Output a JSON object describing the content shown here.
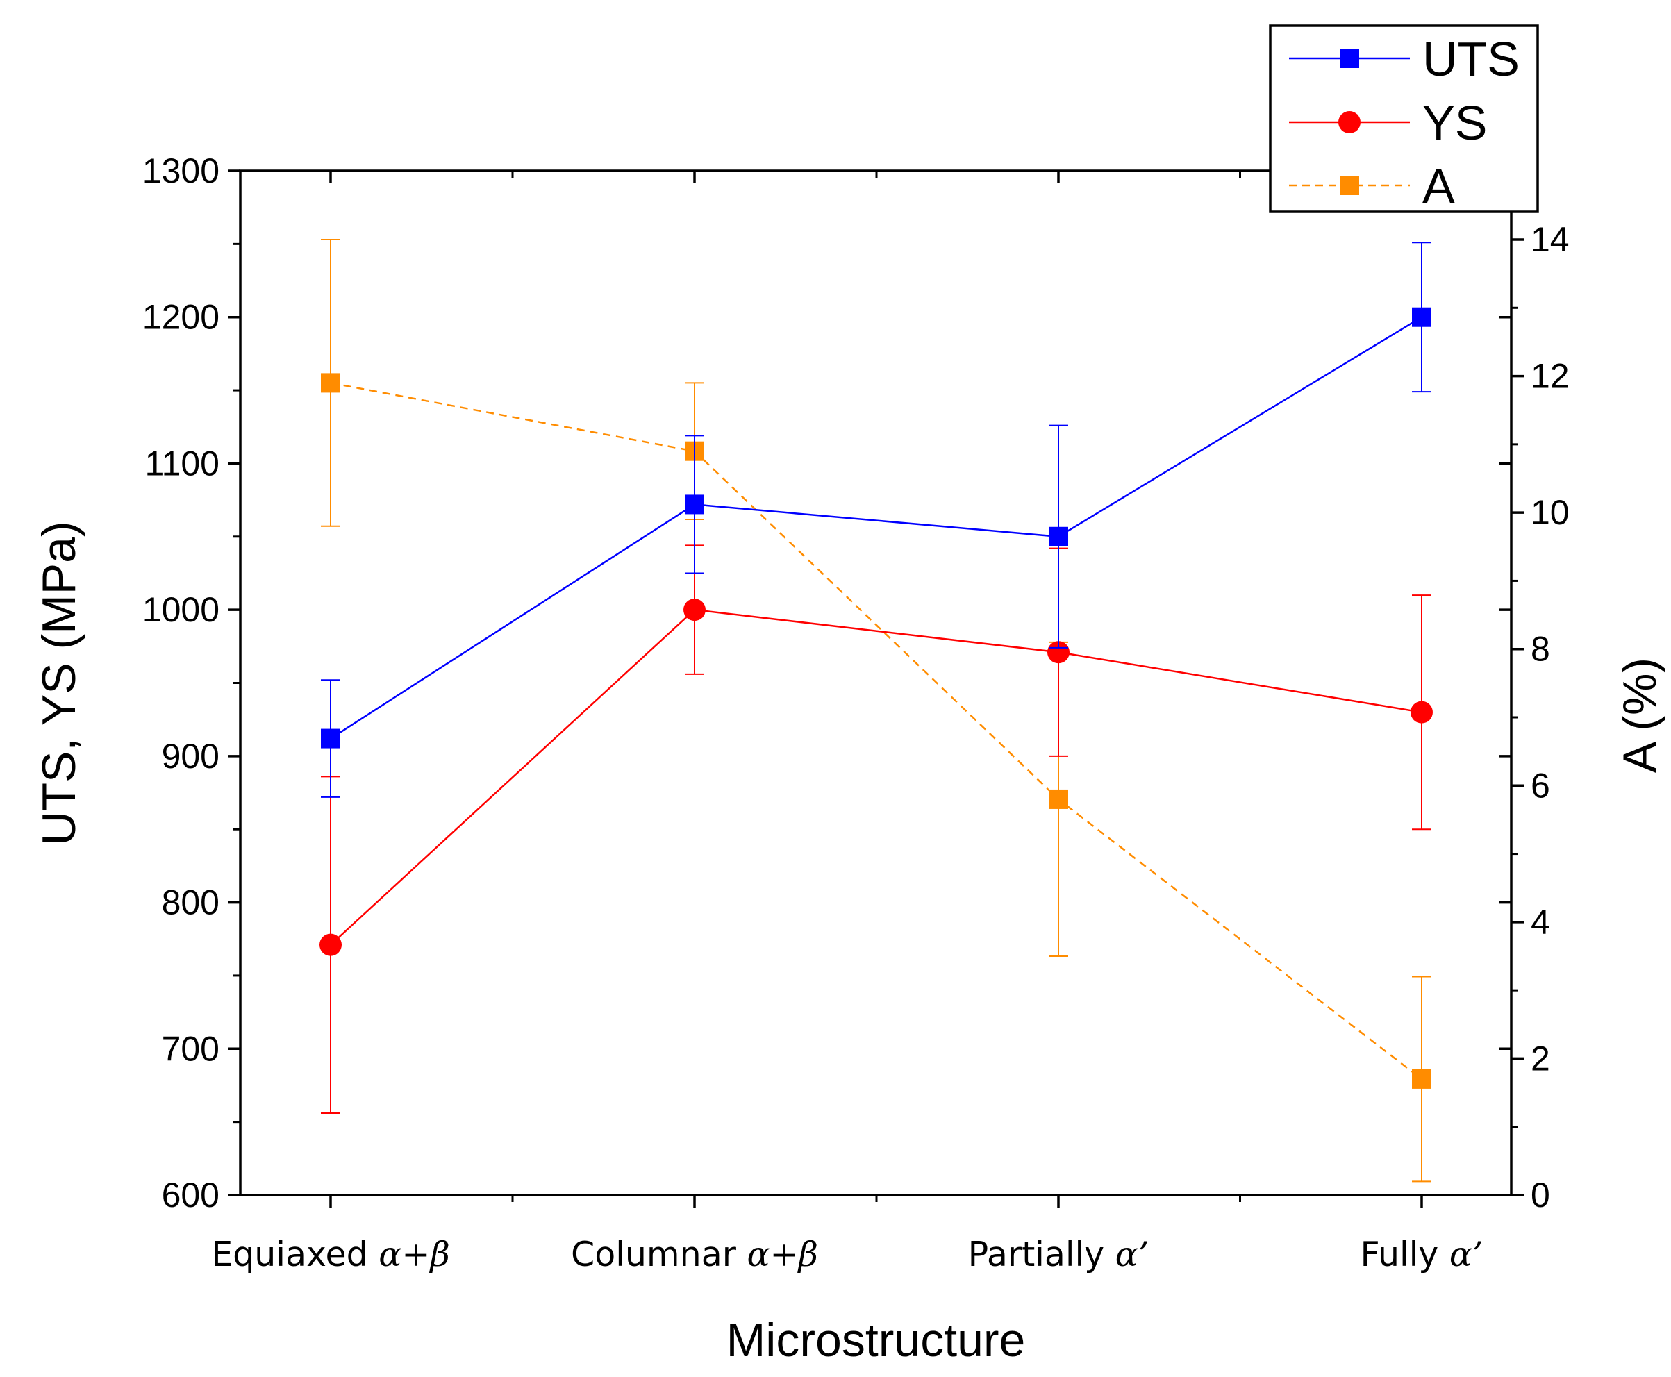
{
  "chart_data": {
    "type": "line",
    "xlabel": "Microstructure",
    "ylabel_left": "UTS, YS (MPa)",
    "ylabel_right": "A (%)",
    "categories": [
      {
        "text": "Equiaxed ",
        "greek": "α+β"
      },
      {
        "text": "Columnar ",
        "greek": "α+β"
      },
      {
        "text": "Partially ",
        "greek": "α’"
      },
      {
        "text": "Fully ",
        "greek": "α’"
      }
    ],
    "ylim_left": [
      600,
      1300
    ],
    "yticks_left": [
      600,
      700,
      800,
      900,
      1000,
      1100,
      1200,
      1300
    ],
    "ylim_right": [
      0,
      14.0
    ],
    "yticks_right": [
      0,
      2,
      4,
      6,
      8,
      10,
      12,
      14
    ],
    "grid": false,
    "legend_position": "top-right",
    "series": [
      {
        "name": "UTS",
        "axis": "left",
        "color": "#0000ff",
        "marker": "square",
        "line_style": "solid",
        "values": [
          912,
          1072,
          1050,
          1200
        ],
        "errors": [
          40,
          47,
          76,
          51
        ]
      },
      {
        "name": "YS",
        "axis": "left",
        "color": "#ff0000",
        "marker": "circle",
        "line_style": "solid",
        "values": [
          771,
          1000,
          971,
          930
        ],
        "errors": [
          115,
          44,
          71,
          80
        ]
      },
      {
        "name": "A",
        "axis": "right",
        "color": "#ff8c00",
        "marker": "square",
        "line_style": "dashed",
        "values": [
          11.9,
          10.9,
          5.8,
          1.7
        ],
        "errors": [
          2.1,
          1.0,
          2.3,
          1.5
        ]
      }
    ]
  }
}
